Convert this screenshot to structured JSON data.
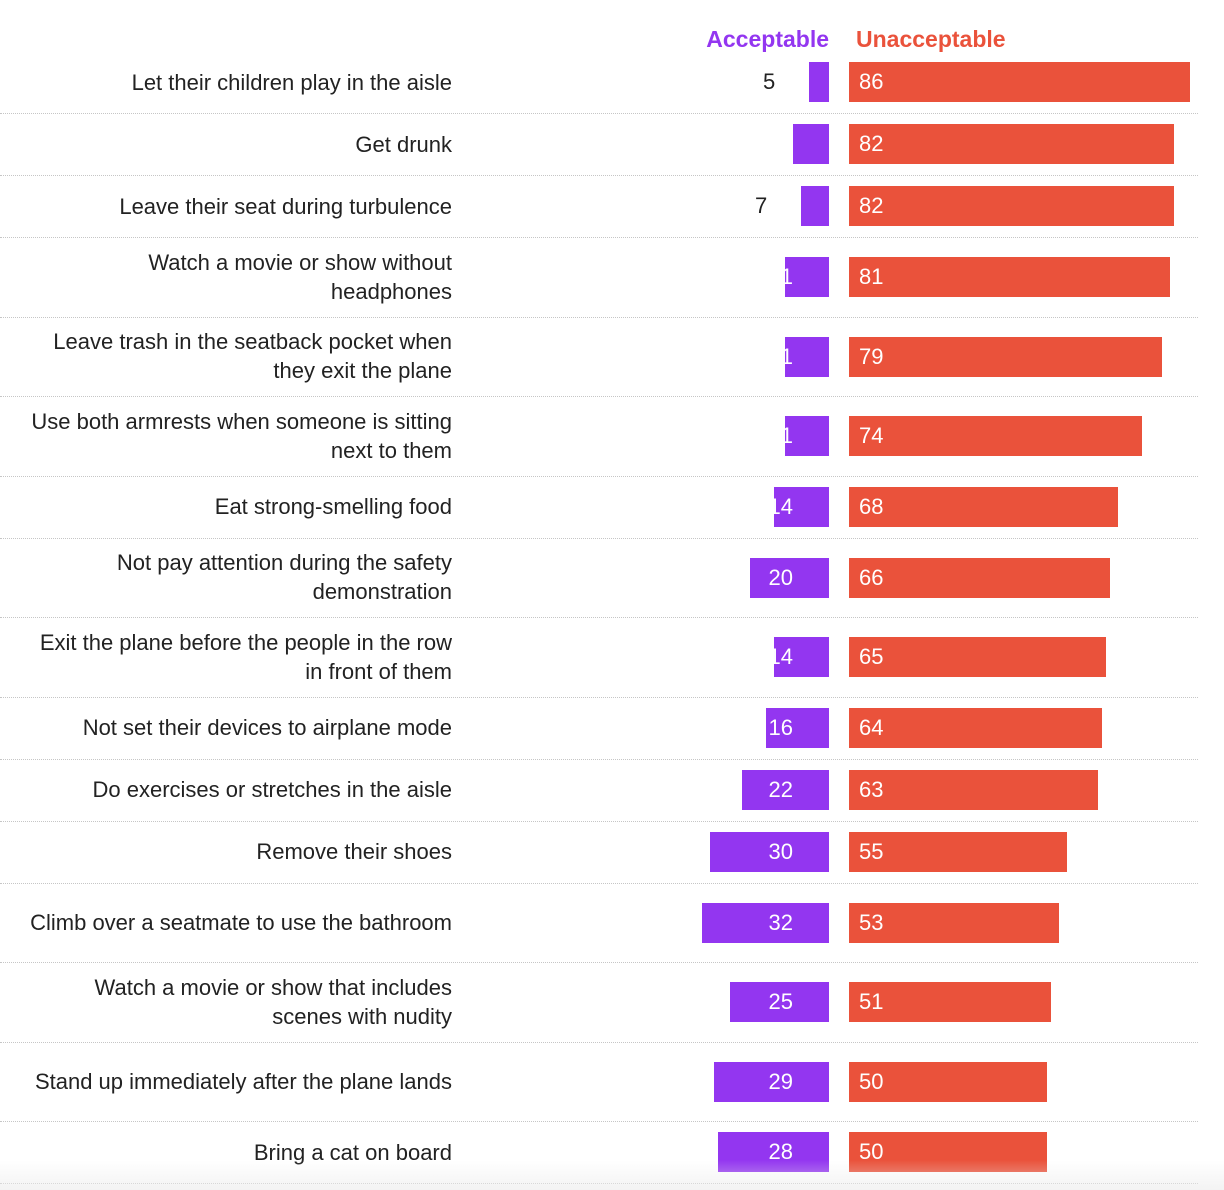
{
  "chart_data": {
    "type": "bar",
    "orientation": "horizontal",
    "layout": "diverging",
    "title": "",
    "categories": [
      "Let their children play in the aisle",
      "Get drunk",
      "Leave their seat during turbulence",
      "Watch a movie or show without headphones",
      "Leave trash in the seatback pocket when they exit the plane",
      "Use both armrests when someone is sitting next to them",
      "Eat strong-smelling food",
      "Not pay attention during the safety demonstration",
      "Exit the plane before the people in the row in front of them",
      "Not set their devices to airplane mode",
      "Do exercises or stretches in the aisle",
      "Remove their shoes",
      "Climb over a seatmate to use the bathroom",
      "Watch a movie or show that includes scenes with nudity",
      "Stand up immediately after the plane lands",
      "Bring a cat on board"
    ],
    "series": [
      {
        "name": "Acceptable",
        "color": "#9336f0",
        "values": [
          5,
          9,
          7,
          11,
          11,
          11,
          14,
          20,
          14,
          16,
          22,
          30,
          32,
          25,
          29,
          28
        ]
      },
      {
        "name": "Unacceptable",
        "color": "#ea523b",
        "values": [
          86,
          82,
          82,
          81,
          79,
          74,
          68,
          66,
          65,
          64,
          63,
          55,
          53,
          51,
          50,
          50
        ]
      }
    ],
    "legend": "top",
    "grid": false
  }
}
